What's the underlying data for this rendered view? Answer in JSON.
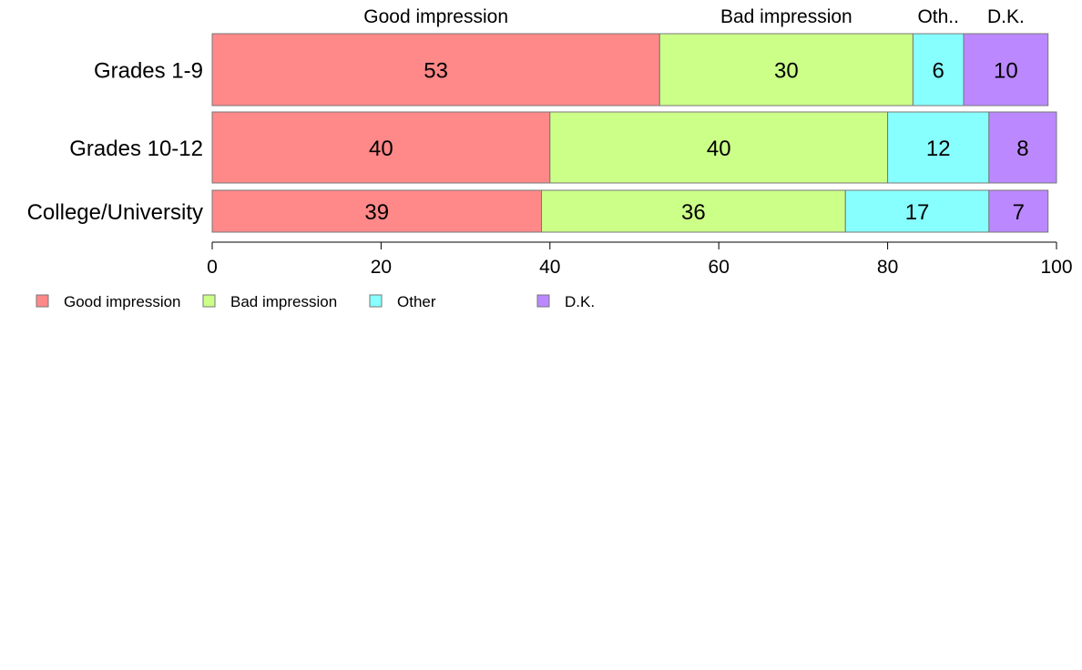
{
  "chart_data": {
    "type": "bar",
    "orientation": "horizontal",
    "stacked": true,
    "categories": [
      "Grades 1-9",
      "Grades 10-12",
      "College/University"
    ],
    "series": [
      {
        "name": "Good impression",
        "short_label": "Good impression",
        "color": "#FF8888",
        "values": [
          53,
          40,
          39
        ]
      },
      {
        "name": "Bad impression",
        "short_label": "Bad impression",
        "color": "#CCFF88",
        "values": [
          30,
          40,
          36
        ]
      },
      {
        "name": "Other",
        "short_label": "Oth..",
        "color": "#88FFFF",
        "values": [
          6,
          12,
          17
        ]
      },
      {
        "name": "D.K.",
        "short_label": "D.K.",
        "color": "#BB88FF",
        "values": [
          10,
          8,
          7
        ]
      }
    ],
    "xlim": [
      0,
      100
    ],
    "xticks": [
      0,
      20,
      40,
      60,
      80,
      100
    ],
    "title": "",
    "xlabel": "",
    "ylabel": "",
    "grid": false,
    "legend_position": "bottom-left"
  }
}
